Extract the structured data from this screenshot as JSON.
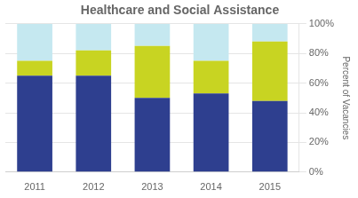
{
  "chart_data": {
    "type": "bar",
    "title": "Healthcare and Social Assistance",
    "categories": [
      "2011",
      "2012",
      "2013",
      "2014",
      "2015"
    ],
    "series": [
      {
        "color": "#2e3f8f",
        "values": [
          65,
          65,
          50,
          53,
          48
        ]
      },
      {
        "color": "#c8d422",
        "values": [
          10,
          17,
          35,
          22,
          40
        ]
      },
      {
        "color": "#c5e8f0",
        "values": [
          25,
          18,
          15,
          25,
          12
        ]
      }
    ],
    "stacked": true,
    "ylabel": "Percent of Vacancies",
    "ylim": [
      0,
      100
    ],
    "yticks": [
      {
        "value": 0,
        "label": "0%"
      },
      {
        "value": 20,
        "label": "20%"
      },
      {
        "value": 40,
        "label": "40%"
      },
      {
        "value": 60,
        "label": "60%"
      },
      {
        "value": 80,
        "label": "80%"
      },
      {
        "value": 100,
        "label": "100%"
      }
    ],
    "grid": true
  }
}
